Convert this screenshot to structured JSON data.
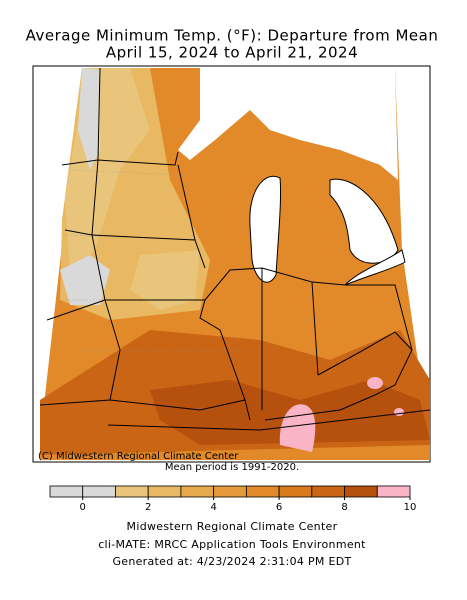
{
  "title": [
    "Average Minimum Temp. (°F): Departure from Mean",
    "April 15, 2024 to April 21, 2024"
  ],
  "map": {
    "copyright": "(C) Midwestern Regional Climate Center",
    "note": "Mean period is 1991-2020."
  },
  "legend": {
    "bins": [
      -1,
      0,
      1,
      2,
      3,
      4,
      5,
      6,
      7,
      8,
      9,
      10
    ],
    "colors": [
      "#d9d9d9",
      "#d9d9d9",
      "#e8c57a",
      "#e8b862",
      "#e6a94c",
      "#e49a3a",
      "#e28a2a",
      "#d97a1c",
      "#c96514",
      "#b5500d",
      "#f9b5c5"
    ],
    "ticks": [
      0,
      2,
      4,
      6,
      8,
      10
    ]
  },
  "footer": [
    "Midwestern Regional Climate Center",
    "cli-MATE: MRCC Application Tools Environment",
    "Generated at: 4/23/2024 2:31:04 PM EDT"
  ]
}
